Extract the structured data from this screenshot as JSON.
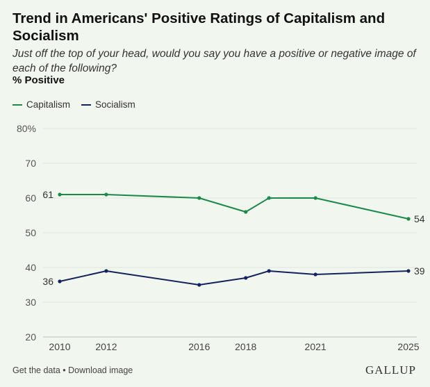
{
  "title": "Trend in Americans' Positive Ratings of Capitalism and Socialism",
  "subtitle": "Just off the top of your head, would you say you have a positive or negative image of each of the following?",
  "unit_label": "% Positive",
  "footer": {
    "get_data": "Get the data",
    "separator": " • ",
    "download": "Download image",
    "brand": "GALLUP"
  },
  "chart_data": {
    "type": "line",
    "title": "Trend in Americans' Positive Ratings of Capitalism and Socialism",
    "ylabel": "% Positive",
    "ylim": [
      20,
      80
    ],
    "y_ticks": [
      20,
      30,
      40,
      50,
      60,
      70,
      80
    ],
    "y_tick_labels": [
      "20",
      "30",
      "40",
      "50",
      "60",
      "70",
      "80%"
    ],
    "x_ticks": [
      2010,
      2012,
      2016,
      2018,
      2021,
      2025
    ],
    "x": [
      2010,
      2012,
      2016,
      2018,
      2019,
      2021,
      2025
    ],
    "grid": true,
    "legend": "top-left",
    "series": [
      {
        "name": "Capitalism",
        "color": "#1a8a4a",
        "values": [
          61,
          61,
          60,
          56,
          60,
          60,
          54
        ],
        "labels": {
          "first": "61",
          "last": "54"
        }
      },
      {
        "name": "Socialism",
        "color": "#14235e",
        "values": [
          36,
          39,
          35,
          37,
          39,
          38,
          39
        ],
        "labels": {
          "first": "36",
          "last": "39"
        }
      }
    ]
  }
}
